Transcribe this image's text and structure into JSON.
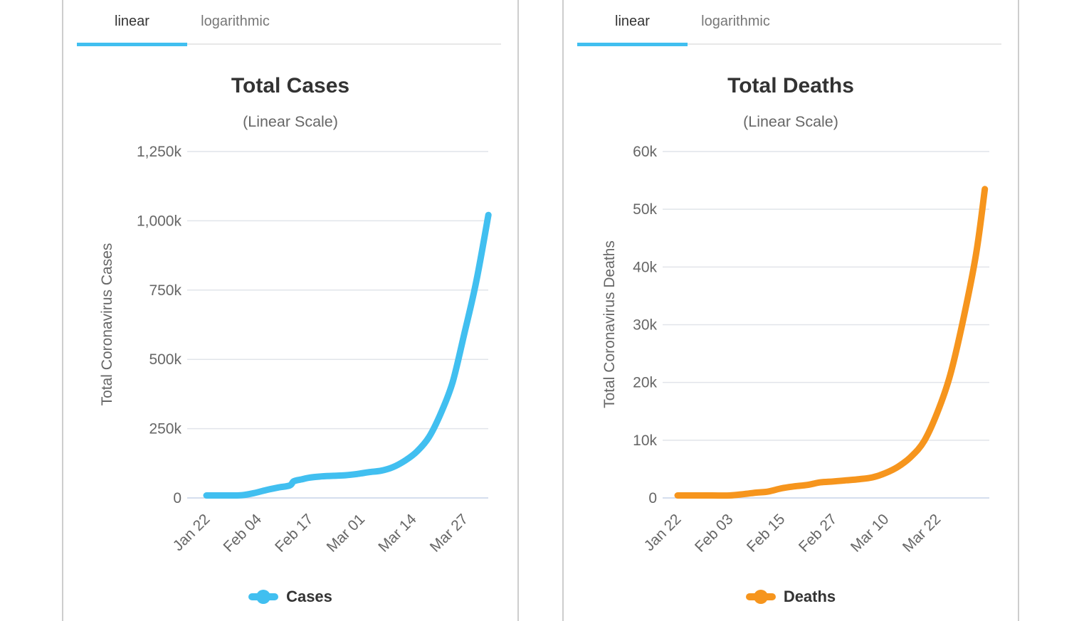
{
  "tabs": [
    "linear",
    "logarithmic"
  ],
  "active_tab": "linear",
  "colors": {
    "accent_blue": "#41bff0",
    "cases_line": "#41bff0",
    "deaths_line": "#f6951d",
    "grid_line": "#e1e4ea",
    "axis_line": "#c7d3e8",
    "title_text": "#333333",
    "muted_text": "#666666",
    "inactive_tab": "#777777",
    "panel_border": "#cdcdcd"
  },
  "chart_data": [
    {
      "type": "line",
      "title": "Total Cases",
      "subtitle": "(Linear Scale)",
      "ylabel": "Total Coronavirus Cases",
      "xlabel": "",
      "legend": "Cases",
      "legend_position": "bottom",
      "grid": "horizontal",
      "line_color": "#41bff0",
      "ylim": [
        0,
        1250000
      ],
      "y_ticks": [
        {
          "value": 0,
          "label": "0"
        },
        {
          "value": 250000,
          "label": "250k"
        },
        {
          "value": 500000,
          "label": "500k"
        },
        {
          "value": 750000,
          "label": "750k"
        },
        {
          "value": 1000000,
          "label": "1,000k"
        },
        {
          "value": 1250000,
          "label": "1,250k"
        }
      ],
      "x_ticks": [
        {
          "day": 0,
          "label": "Jan 22"
        },
        {
          "day": 13,
          "label": "Feb 04"
        },
        {
          "day": 26,
          "label": "Feb 17"
        },
        {
          "day": 39,
          "label": "Mar 01"
        },
        {
          "day": 52,
          "label": "Mar 14"
        },
        {
          "day": 65,
          "label": "Mar 27"
        }
      ],
      "series": [
        {
          "name": "Cases",
          "x_days": [
            0,
            3,
            6,
            9,
            12,
            15,
            18,
            21,
            22,
            24,
            26,
            29,
            32,
            35,
            38,
            41,
            44,
            47,
            50,
            53,
            56,
            59,
            62,
            65,
            68,
            71
          ],
          "values": [
            580,
            2014,
            5578,
            9927,
            17391,
            28276,
            37558,
            45134,
            60328,
            67100,
            73332,
            77673,
            79930,
            81820,
            86604,
            93123,
            98425,
            111354,
            134509,
            167446,
            218744,
            304524,
            417966,
            596366,
            784314,
            1021000
          ]
        }
      ]
    },
    {
      "type": "line",
      "title": "Total Deaths",
      "subtitle": "(Linear Scale)",
      "ylabel": "Total Coronavirus Deaths",
      "xlabel": "",
      "legend": "Deaths",
      "legend_position": "bottom",
      "grid": "horizontal",
      "line_color": "#f6951d",
      "ylim": [
        0,
        60000
      ],
      "y_ticks": [
        {
          "value": 0,
          "label": "0"
        },
        {
          "value": 10000,
          "label": "10k"
        },
        {
          "value": 20000,
          "label": "20k"
        },
        {
          "value": 30000,
          "label": "30k"
        },
        {
          "value": 40000,
          "label": "40k"
        },
        {
          "value": 50000,
          "label": "50k"
        },
        {
          "value": 60000,
          "label": "60k"
        }
      ],
      "x_ticks": [
        {
          "day": 0,
          "label": "Jan 22"
        },
        {
          "day": 12,
          "label": "Feb 03"
        },
        {
          "day": 24,
          "label": "Feb 15"
        },
        {
          "day": 36,
          "label": "Feb 27"
        },
        {
          "day": 48,
          "label": "Mar 10"
        },
        {
          "day": 60,
          "label": "Mar 22"
        }
      ],
      "series": [
        {
          "name": "Deaths",
          "x_days": [
            0,
            4,
            8,
            12,
            15,
            18,
            21,
            24,
            27,
            30,
            33,
            36,
            39,
            42,
            45,
            48,
            51,
            54,
            57,
            60,
            63,
            66,
            69,
            71
          ],
          "values": [
            17,
            56,
            170,
            362,
            638,
            906,
            1118,
            1669,
            2010,
            2251,
            2700,
            2858,
            3050,
            3254,
            3559,
            4296,
            5429,
            7169,
            9881,
            14748,
            21293,
            30879,
            42332,
            53500
          ]
        }
      ]
    }
  ]
}
